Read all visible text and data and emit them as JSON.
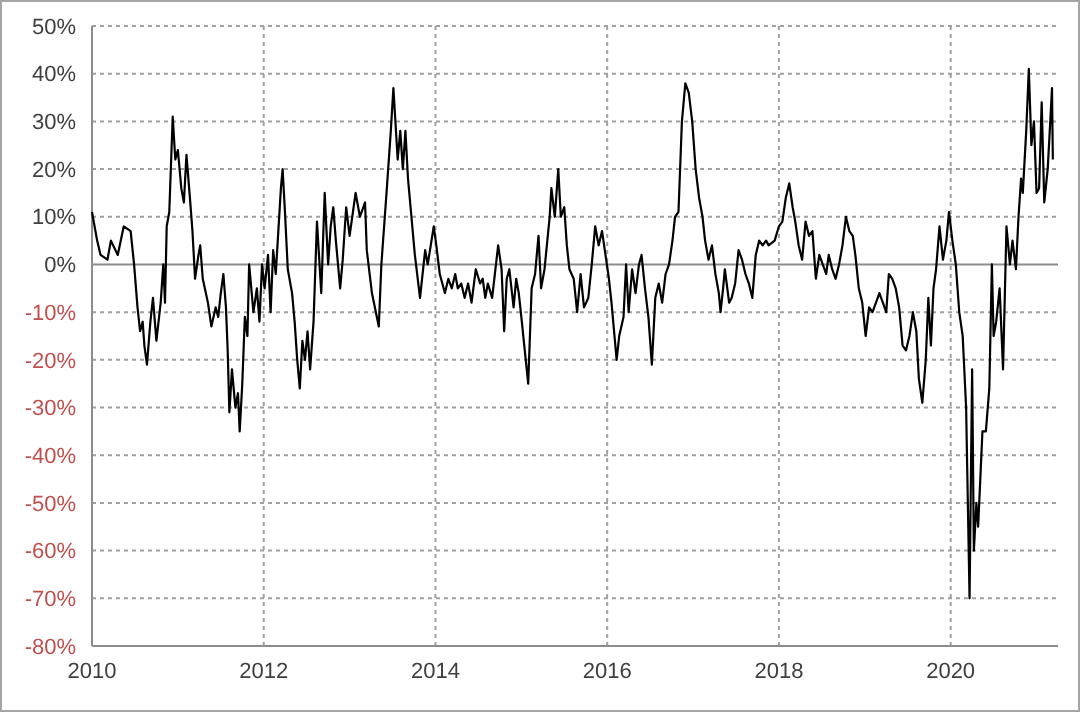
{
  "chart_data": {
    "type": "line",
    "grid": true,
    "line_style": "solid",
    "marker": "none",
    "xlim": [
      2010,
      2021.25
    ],
    "xticks": [
      2010,
      2012,
      2014,
      2016,
      2018,
      2020
    ],
    "ylim": [
      -80,
      50
    ],
    "yticks": [
      {
        "value": 50,
        "label": "50%"
      },
      {
        "value": 40,
        "label": "40%"
      },
      {
        "value": 30,
        "label": "30%"
      },
      {
        "value": 20,
        "label": "20%"
      },
      {
        "value": 10,
        "label": "10%"
      },
      {
        "value": 0,
        "label": "0%"
      },
      {
        "value": -10,
        "label": "-10%"
      },
      {
        "value": -20,
        "label": "-20%"
      },
      {
        "value": -30,
        "label": "-30%"
      },
      {
        "value": -40,
        "label": "-40%"
      },
      {
        "value": -50,
        "label": "-50%"
      },
      {
        "value": -60,
        "label": "-60%"
      },
      {
        "value": -70,
        "label": "-70%"
      },
      {
        "value": -80,
        "label": "-80%"
      }
    ],
    "series": [
      {
        "color": "#000000",
        "x": [
          2010.0,
          2010.06,
          2010.1,
          2010.18,
          2010.22,
          2010.3,
          2010.37,
          2010.45,
          2010.49,
          2010.53,
          2010.56,
          2010.59,
          2010.61,
          2010.64,
          2010.68,
          2010.71,
          2010.75,
          2010.8,
          2010.83,
          2010.85,
          2010.87,
          2010.9,
          2010.94,
          2010.97,
          2011.0,
          2011.04,
          2011.07,
          2011.1,
          2011.14,
          2011.17,
          2011.2,
          2011.24,
          2011.26,
          2011.29,
          2011.35,
          2011.39,
          2011.44,
          2011.47,
          2011.5,
          2011.53,
          2011.56,
          2011.58,
          2011.6,
          2011.63,
          2011.67,
          2011.7,
          2011.72,
          2011.75,
          2011.78,
          2011.81,
          2011.83,
          2011.88,
          2011.92,
          2011.95,
          2011.98,
          2012.01,
          2012.05,
          2012.08,
          2012.11,
          2012.14,
          2012.16,
          2012.2,
          2012.22,
          2012.25,
          2012.28,
          2012.33,
          2012.36,
          2012.39,
          2012.42,
          2012.45,
          2012.48,
          2012.51,
          2012.54,
          2012.58,
          2012.62,
          2012.67,
          2012.71,
          2012.75,
          2012.78,
          2012.81,
          2012.84,
          2012.89,
          2012.92,
          2012.96,
          2013.0,
          2013.07,
          2013.12,
          2013.18,
          2013.2,
          2013.26,
          2013.34,
          2013.37,
          2013.41,
          2013.43,
          2013.48,
          2013.51,
          2013.56,
          2013.59,
          2013.62,
          2013.65,
          2013.68,
          2013.72,
          2013.76,
          2013.82,
          2013.88,
          2013.91,
          2013.98,
          2014.01,
          2014.05,
          2014.11,
          2014.15,
          2014.19,
          2014.23,
          2014.26,
          2014.3,
          2014.34,
          2014.38,
          2014.42,
          2014.47,
          2014.52,
          2014.55,
          2014.58,
          2014.61,
          2014.66,
          2014.73,
          2014.77,
          2014.8,
          2014.83,
          2014.86,
          2014.91,
          2014.94,
          2014.97,
          2015.0,
          2015.04,
          2015.08,
          2015.12,
          2015.16,
          2015.2,
          2015.23,
          2015.27,
          2015.33,
          2015.35,
          2015.39,
          2015.43,
          2015.46,
          2015.5,
          2015.53,
          2015.56,
          2015.61,
          2015.65,
          2015.69,
          2015.73,
          2015.78,
          2015.82,
          2015.86,
          2015.9,
          2015.94,
          2015.98,
          2016.02,
          2016.05,
          2016.11,
          2016.14,
          2016.19,
          2016.22,
          2016.25,
          2016.29,
          2016.33,
          2016.37,
          2016.4,
          2016.44,
          2016.48,
          2016.52,
          2016.56,
          2016.6,
          2016.64,
          2016.68,
          2016.72,
          2016.76,
          2016.79,
          2016.83,
          2016.87,
          2016.91,
          2016.95,
          2016.99,
          2017.03,
          2017.07,
          2017.11,
          2017.14,
          2017.18,
          2017.22,
          2017.26,
          2017.3,
          2017.32,
          2017.35,
          2017.37,
          2017.42,
          2017.45,
          2017.49,
          2017.53,
          2017.57,
          2017.61,
          2017.65,
          2017.69,
          2017.73,
          2017.77,
          2017.81,
          2017.85,
          2017.88,
          2017.95,
          2018.0,
          2018.04,
          2018.08,
          2018.12,
          2018.16,
          2018.19,
          2018.23,
          2018.27,
          2018.31,
          2018.35,
          2018.39,
          2018.43,
          2018.47,
          2018.51,
          2018.55,
          2018.58,
          2018.62,
          2018.66,
          2018.7,
          2018.74,
          2018.78,
          2018.82,
          2018.86,
          2018.89,
          2018.93,
          2018.97,
          2019.01,
          2019.05,
          2019.09,
          2019.13,
          2019.17,
          2019.21,
          2019.25,
          2019.28,
          2019.32,
          2019.36,
          2019.4,
          2019.44,
          2019.48,
          2019.52,
          2019.56,
          2019.6,
          2019.63,
          2019.67,
          2019.71,
          2019.74,
          2019.77,
          2019.8,
          2019.83,
          2019.87,
          2019.91,
          2019.95,
          2019.98,
          2020.02,
          2020.06,
          2020.1,
          2020.14,
          2020.18,
          2020.2,
          2020.22,
          2020.25,
          2020.27,
          2020.3,
          2020.32,
          2020.34,
          2020.37,
          2020.41,
          2020.45,
          2020.48,
          2020.5,
          2020.53,
          2020.57,
          2020.61,
          2020.65,
          2020.69,
          2020.72,
          2020.76,
          2020.79,
          2020.82,
          2020.84,
          2020.88,
          2020.91,
          2020.94,
          2020.97,
          2021.0,
          2021.03,
          2021.06,
          2021.09,
          2021.13,
          2021.16,
          2021.18,
          2021.19
        ],
        "values": [
          11,
          5,
          2,
          1,
          5,
          2,
          8,
          7,
          0,
          -9,
          -14,
          -12,
          -17,
          -21,
          -12,
          -7,
          -16,
          -8,
          0,
          -8,
          8,
          11,
          31,
          22,
          24,
          16,
          13,
          23,
          14,
          7,
          -3,
          2,
          4,
          -3,
          -8,
          -13,
          -9,
          -11,
          -6,
          -2,
          -9,
          -18,
          -31,
          -22,
          -30,
          -27,
          -35,
          -25,
          -11,
          -15,
          0,
          -10,
          -5,
          -12,
          0,
          -5,
          2,
          -10,
          3,
          -2,
          4,
          16,
          20,
          10,
          -1,
          -6,
          -12,
          -20,
          -26,
          -16,
          -20,
          -14,
          -22,
          -12,
          9,
          -6,
          15,
          0,
          8,
          12,
          5,
          -5,
          1,
          12,
          6,
          15,
          10,
          13,
          3,
          -6,
          -13,
          0,
          10,
          15,
          28,
          37,
          22,
          28,
          20,
          28,
          18,
          10,
          2,
          -7,
          3,
          0,
          8,
          4,
          -2,
          -6,
          -3,
          -5,
          -2,
          -5,
          -4,
          -7,
          -4,
          -8,
          -1,
          -4,
          -3,
          -7,
          -4,
          -7,
          4,
          -1,
          -14,
          -3,
          -1,
          -9,
          -3,
          -6,
          -11,
          -18,
          -25,
          -5,
          -2,
          6,
          -5,
          -1,
          10,
          16,
          10,
          20,
          10,
          12,
          4,
          -1,
          -3,
          -10,
          -2,
          -9,
          -7,
          0,
          8,
          4,
          7,
          2,
          -3,
          -8,
          -20,
          -15,
          -11,
          0,
          -10,
          -1,
          -6,
          0,
          2,
          -5,
          -11,
          -21,
          -7,
          -4,
          -8,
          -2,
          0,
          5,
          10,
          11,
          30,
          38,
          36,
          30,
          20,
          14,
          10,
          5,
          1,
          4,
          -2,
          -6,
          -10,
          -5,
          -1,
          -8,
          -7,
          -4,
          3,
          1,
          -2,
          -4,
          -7,
          2,
          5,
          4,
          5,
          4,
          5,
          8,
          9,
          14,
          17,
          12,
          9,
          4,
          1,
          9,
          6,
          7,
          -3,
          2,
          0,
          -2,
          2,
          -1,
          -3,
          0,
          4,
          10,
          7,
          6,
          2,
          -5,
          -8,
          -15,
          -9,
          -10,
          -8,
          -6,
          -8,
          -10,
          -2,
          -3,
          -5,
          -9,
          -17,
          -18,
          -15,
          -10,
          -14,
          -24,
          -29,
          -20,
          -7,
          -17,
          -5,
          -1,
          8,
          1,
          5,
          11,
          5,
          0,
          -10,
          -15,
          -30,
          -50,
          -70,
          -22,
          -60,
          -50,
          -55,
          -47,
          -35,
          -35,
          -26,
          0,
          -15,
          -12,
          -5,
          -22,
          8,
          0,
          5,
          -1,
          10,
          18,
          15,
          28,
          41,
          25,
          30,
          15,
          16,
          34,
          13,
          20,
          30,
          37,
          22
        ]
      }
    ]
  }
}
